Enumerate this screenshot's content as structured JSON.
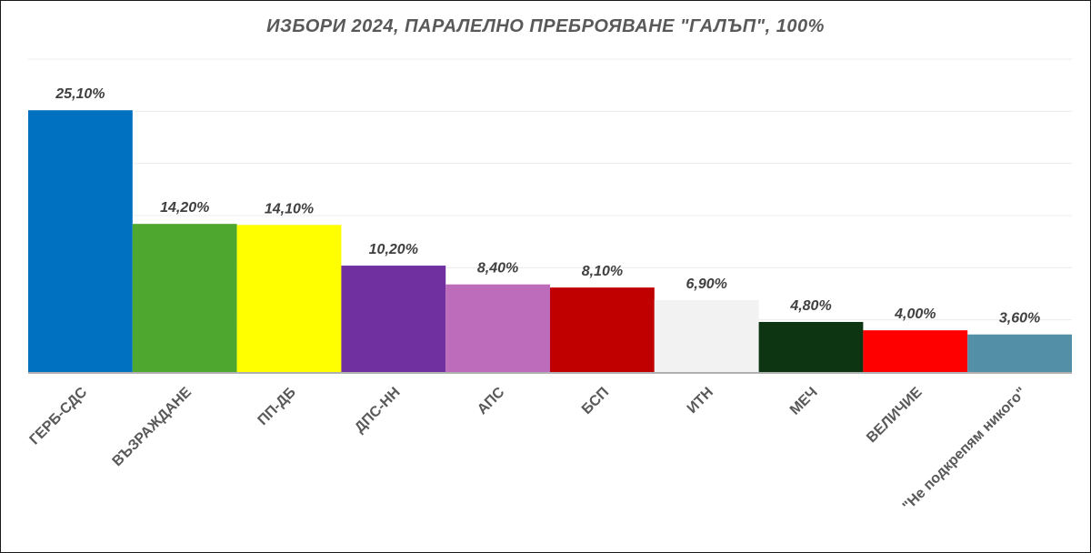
{
  "chart_data": {
    "type": "bar",
    "title": "ИЗБОРИ 2024, ПАРАЛЕЛНО ПРЕБРОЯВАНЕ \"ГАЛЪП\", 100%",
    "xlabel": "",
    "ylabel": "",
    "ylim": [
      0,
      30
    ],
    "grid": true,
    "legend": "none",
    "categories": [
      "ГЕРБ-СДС",
      "ВЪЗРАЖДАНЕ",
      "ПП-ДБ",
      "ДПС-НН",
      "АПС",
      "БСП",
      "ИТН",
      "МЕЧ",
      "ВЕЛИЧИЕ",
      "\"Не подкрепям никого\""
    ],
    "values": [
      25.1,
      14.2,
      14.1,
      10.2,
      8.4,
      8.1,
      6.9,
      4.8,
      4.0,
      3.6
    ],
    "value_labels": [
      "25,10%",
      "14,20%",
      "14,10%",
      "10,20%",
      "8,40%",
      "8,10%",
      "6,90%",
      "4,80%",
      "4,00%",
      "3,60%"
    ],
    "colors": [
      "#0070C0",
      "#4EA72E",
      "#FFFF00",
      "#7030A0",
      "#BC6CBA",
      "#C00000",
      "#F2F2F2",
      "#0D3512",
      "#FF0000",
      "#548FA8"
    ]
  }
}
